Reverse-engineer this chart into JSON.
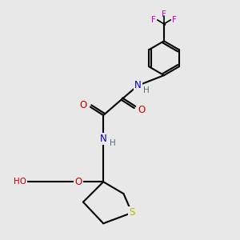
{
  "bg_color": "#e8e8e8",
  "bond_color": "#000000",
  "colors": {
    "C": "#000000",
    "N": "#0000cc",
    "O": "#cc0000",
    "S": "#b8b800",
    "F": "#cc00cc",
    "H": "#507070"
  },
  "figsize": [
    3.0,
    3.0
  ],
  "dpi": 100
}
